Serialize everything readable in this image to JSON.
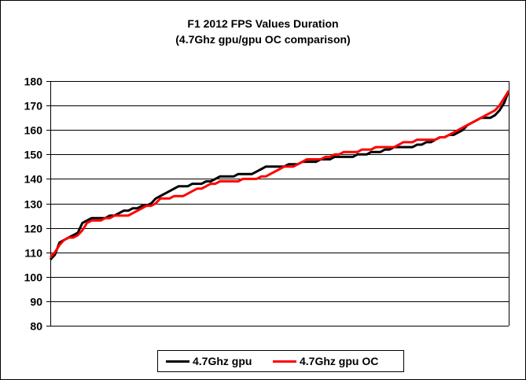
{
  "chart_data": {
    "type": "line",
    "title": "F1 2012 FPS Values Duration",
    "subtitle": "(4.7Ghz gpu/gpu OC comparison)",
    "xlabel": "",
    "ylabel": "",
    "ylim": [
      80,
      180
    ],
    "yticks": [
      80,
      90,
      100,
      110,
      120,
      130,
      140,
      150,
      160,
      170,
      180
    ],
    "grid": true,
    "legend_position": "bottom",
    "x": [
      0,
      1,
      2,
      3,
      4,
      5,
      6,
      7,
      8,
      9,
      10,
      11,
      12,
      13,
      14,
      15,
      16,
      17,
      18,
      19,
      20,
      21,
      22,
      23,
      24,
      25,
      26,
      27,
      28,
      29,
      30,
      31,
      32,
      33,
      34,
      35,
      36,
      37,
      38,
      39,
      40,
      41,
      42,
      43,
      44,
      45,
      46,
      47,
      48,
      49,
      50,
      51,
      52,
      53,
      54,
      55,
      56,
      57,
      58,
      59,
      60,
      61,
      62,
      63,
      64,
      65,
      66,
      67,
      68,
      69,
      70,
      71,
      72,
      73,
      74,
      75,
      76,
      77,
      78,
      79,
      80,
      81,
      82,
      83,
      84,
      85,
      86,
      87,
      88,
      89,
      90,
      91,
      92,
      93,
      94,
      95,
      96,
      97,
      98,
      99,
      100
    ],
    "series": [
      {
        "name": "4.7Ghz gpu",
        "color": "#000000",
        "values": [
          107,
          109,
          114,
          115,
          116,
          117,
          118,
          122,
          123,
          124,
          124,
          124,
          124,
          125,
          125,
          126,
          127,
          127,
          128,
          128,
          129,
          129,
          130,
          132,
          133,
          134,
          135,
          136,
          137,
          137,
          137,
          138,
          138,
          138,
          139,
          139,
          140,
          141,
          141,
          141,
          141,
          142,
          142,
          142,
          142,
          143,
          144,
          145,
          145,
          145,
          145,
          145,
          146,
          146,
          146,
          147,
          147,
          147,
          147,
          148,
          148,
          148,
          149,
          149,
          149,
          149,
          149,
          150,
          150,
          150,
          151,
          151,
          151,
          152,
          152,
          153,
          153,
          153,
          153,
          153,
          154,
          154,
          155,
          155,
          156,
          157,
          157,
          158,
          158,
          159,
          160,
          162,
          163,
          164,
          165,
          165,
          165,
          166,
          168,
          171,
          176
        ]
      },
      {
        "name": "4.7Ghz gpu OC",
        "color": "#ff0000",
        "values": [
          108,
          110,
          113,
          115,
          116,
          116,
          117,
          119,
          122,
          123,
          123,
          123,
          124,
          124,
          125,
          125,
          125,
          125,
          126,
          127,
          128,
          129,
          129,
          130,
          132,
          132,
          132,
          133,
          133,
          133,
          134,
          135,
          136,
          136,
          137,
          138,
          138,
          139,
          139,
          139,
          139,
          139,
          140,
          140,
          140,
          140,
          141,
          141,
          142,
          143,
          144,
          145,
          145,
          145,
          146,
          147,
          148,
          148,
          148,
          148,
          149,
          149,
          150,
          150,
          151,
          151,
          151,
          151,
          152,
          152,
          152,
          153,
          153,
          153,
          153,
          153,
          154,
          155,
          155,
          155,
          156,
          156,
          156,
          156,
          156,
          157,
          157,
          158,
          159,
          160,
          161,
          162,
          163,
          164,
          165,
          166,
          167,
          168,
          170,
          173,
          176
        ]
      }
    ]
  }
}
